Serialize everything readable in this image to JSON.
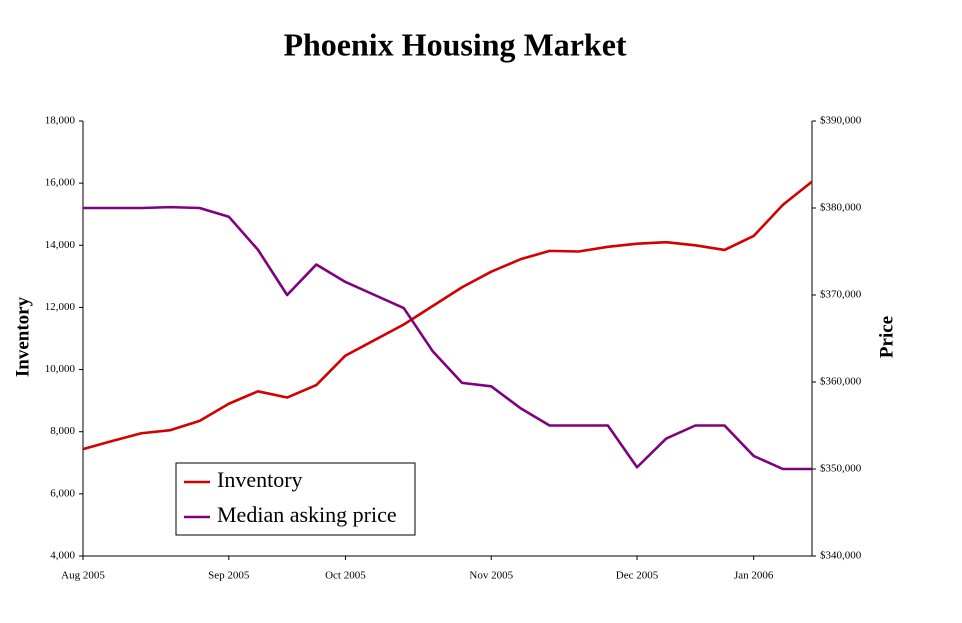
{
  "chart_data": {
    "type": "line",
    "title": "Phoenix Housing Market",
    "y_label": "Inventory",
    "y2_label": "Price",
    "categories": [
      "Aug 2005",
      null,
      null,
      null,
      null,
      "Sep 2005",
      null,
      null,
      null,
      "Oct 2005",
      null,
      null,
      null,
      null,
      "Nov 2005",
      null,
      null,
      null,
      null,
      "Dec 2005",
      null,
      null,
      null,
      "Jan 2006",
      null,
      null
    ],
    "series": [
      {
        "name": "Inventory",
        "color": "#d40000",
        "axis": "y",
        "values": [
          7440,
          7700,
          7950,
          8050,
          8350,
          8900,
          9300,
          9100,
          9500,
          10450,
          10950,
          11450,
          12050,
          12650,
          13150,
          13550,
          13820,
          13800,
          13950,
          14050,
          14100,
          14000,
          13850,
          14300,
          15300,
          16050
        ]
      },
      {
        "name": "Median asking price",
        "color": "#800080",
        "axis": "y2",
        "values": [
          380000,
          380000,
          380000,
          380100,
          380000,
          379000,
          375200,
          370000,
          373500,
          371500,
          370000,
          368500,
          363500,
          359900,
          359500,
          357000,
          355000,
          355000,
          355000,
          350200,
          353500,
          355000,
          355000,
          351500,
          350000,
          350000
        ]
      }
    ],
    "ylim": [
      4000,
      18000
    ],
    "yticks": [
      {
        "value": 4000,
        "label": "4,000"
      },
      {
        "value": 6000,
        "label": "6,000"
      },
      {
        "value": 8000,
        "label": "8,000"
      },
      {
        "value": 10000,
        "label": "10,000"
      },
      {
        "value": 12000,
        "label": "12,000"
      },
      {
        "value": 14000,
        "label": "14,000"
      },
      {
        "value": 16000,
        "label": "16,000"
      },
      {
        "value": 18000,
        "label": "18,000"
      }
    ],
    "y2lim": [
      340000,
      390000
    ],
    "y2ticks": [
      {
        "value": 340000,
        "label": "$340,000"
      },
      {
        "value": 350000,
        "label": "$350,000"
      },
      {
        "value": 360000,
        "label": "$360,000"
      },
      {
        "value": 370000,
        "label": "$370,000"
      },
      {
        "value": 380000,
        "label": "$380,000"
      },
      {
        "value": 390000,
        "label": "$390,000"
      }
    ],
    "grid": false,
    "legend": "lower left"
  }
}
